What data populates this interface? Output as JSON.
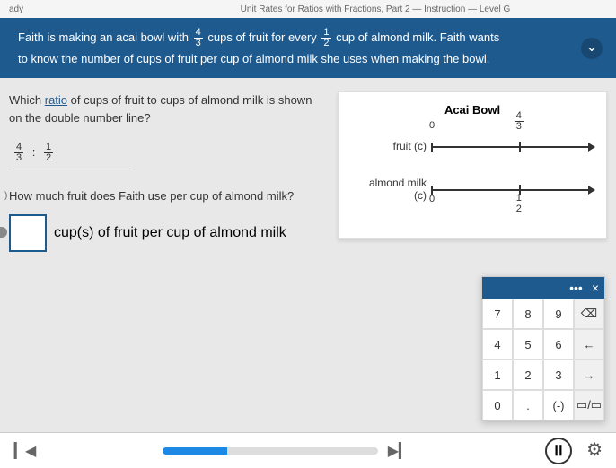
{
  "header": {
    "ready": "ady",
    "unit": "Unit Rates for Ratios with Fractions, Part 2 — Instruction — Level G"
  },
  "banner": {
    "text1": "Faith is making an acai bowl with ",
    "frac1_n": "4",
    "frac1_d": "3",
    "text2": " cups of fruit for every ",
    "frac2_n": "1",
    "frac2_d": "2",
    "text3": " cup of almond milk. Faith wants",
    "line2": "to know the number of cups of fruit per cup of almond milk she uses when making the bowl."
  },
  "q1": {
    "prefix": "Which ",
    "link": "ratio",
    "suffix": " of cups of fruit to cups of almond milk is shown on the double number line?",
    "ans_a_n": "4",
    "ans_a_d": "3",
    "ans_sep": ":",
    "ans_b_n": "1",
    "ans_b_d": "2"
  },
  "q2": {
    "marker": ")",
    "text": "How much fruit does Faith use per cup of almond milk?",
    "label": "cup(s) of fruit per cup of almond milk"
  },
  "diagram": {
    "title": "Acai Bowl",
    "row1_label": "fruit (c)",
    "row2_label": "almond milk (c)",
    "zero": "0",
    "tick_pct": 55,
    "r1_top_n": "4",
    "r1_top_d": "3",
    "r2_bot_n": "1",
    "r2_bot_d": "2"
  },
  "keypad": {
    "more": "•••",
    "close": "×",
    "keys": [
      "7",
      "8",
      "9",
      "⌫",
      "4",
      "5",
      "6",
      "←",
      "1",
      "2",
      "3",
      "→",
      "0",
      ".",
      "(-)",
      "▭/▭"
    ]
  },
  "footer": {
    "progress_pct": 30,
    "pause": "ⅠⅠ"
  }
}
